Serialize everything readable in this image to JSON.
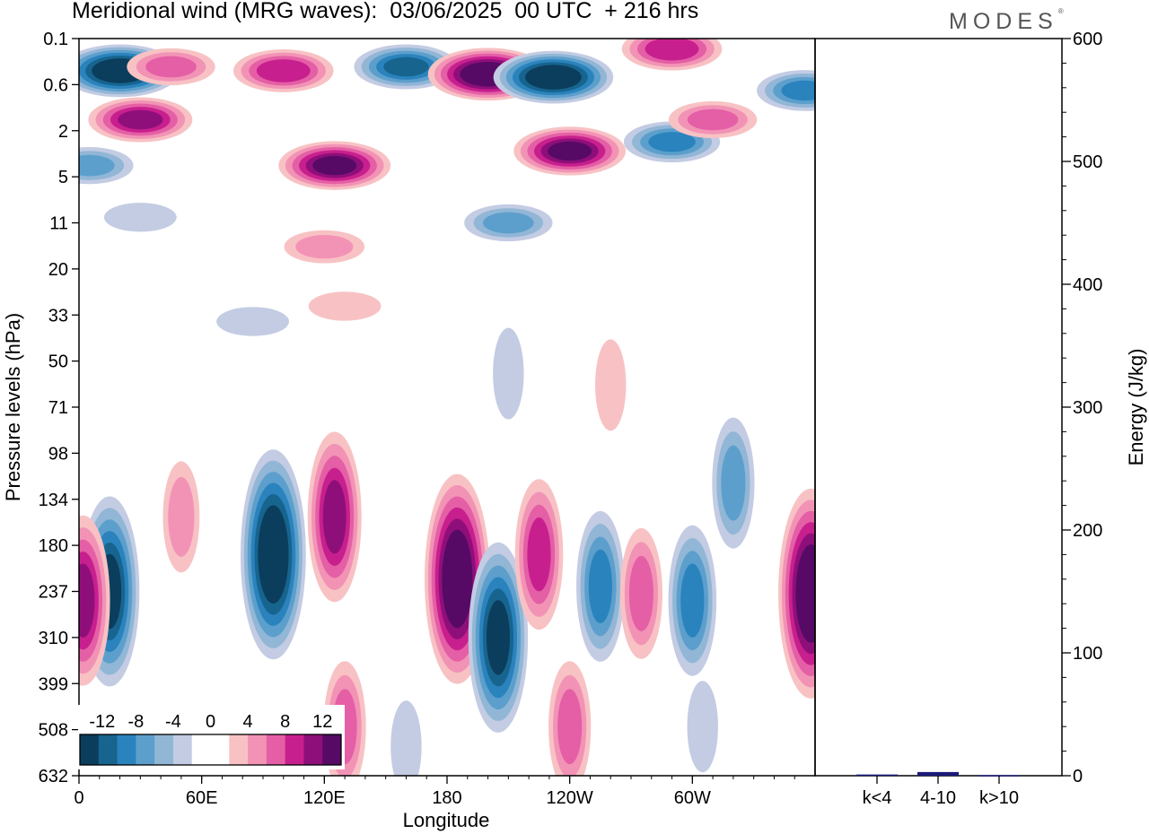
{
  "header": {
    "title": "Meridional wind (MRG waves):  03/06/2025  00 UTC  + 216 hrs",
    "brand": "MODES",
    "brand_mark": "®"
  },
  "chart_data": [
    {
      "type": "heatmap",
      "title": "Meridional wind (MRG waves):  03/06/2025  00 UTC  + 216 hrs",
      "xlabel": "Longitude",
      "ylabel": "Pressure levels (hPa)",
      "x_ticks": [
        "0",
        "60E",
        "120E",
        "180",
        "120W",
        "60W"
      ],
      "y_levels": [
        "0.1",
        "0.6",
        "2",
        "5",
        "11",
        "20",
        "33",
        "50",
        "71",
        "98",
        "134",
        "180",
        "237",
        "310",
        "399",
        "508",
        "632"
      ],
      "colorbar": {
        "labels": [
          "-12",
          "-8",
          "-4",
          "0",
          "4",
          "8",
          "12"
        ],
        "levels": [
          -14,
          -12,
          -10,
          -8,
          -6,
          -4,
          -2,
          0,
          2,
          4,
          6,
          8,
          10,
          12,
          14
        ],
        "colors": [
          "#0b3d5c",
          "#17648f",
          "#2a83bd",
          "#5c9fcc",
          "#91b6d6",
          "#c3cce3",
          "#ffffff",
          "#ffffff",
          "#f8c2c4",
          "#f293b6",
          "#e45fa5",
          "#c81f8e",
          "#8f0f7a",
          "#560a66"
        ]
      },
      "features": [
        {
          "lon": 20,
          "level": 0.35,
          "value": -14
        },
        {
          "lon": 45,
          "level": 0.3,
          "value": 6
        },
        {
          "lon": 100,
          "level": 0.35,
          "value": 9
        },
        {
          "lon": 160,
          "level": 0.3,
          "value": -10
        },
        {
          "lon": 200,
          "level": 0.4,
          "value": 14
        },
        {
          "lon": 232,
          "level": 0.45,
          "value": -14
        },
        {
          "lon": 290,
          "level": 0.15,
          "value": 9
        },
        {
          "lon": 355,
          "level": 0.7,
          "value": -8
        },
        {
          "lon": 30,
          "level": 1.5,
          "value": 10
        },
        {
          "lon": 125,
          "level": 4,
          "value": 12
        },
        {
          "lon": 240,
          "level": 3,
          "value": 12
        },
        {
          "lon": 290,
          "level": 2.5,
          "value": -8
        },
        {
          "lon": 310,
          "level": 1.5,
          "value": 6
        },
        {
          "lon": 5,
          "level": 4,
          "value": -6
        },
        {
          "lon": 30,
          "level": 10,
          "value": -2
        },
        {
          "lon": 210,
          "level": 11,
          "value": -6
        },
        {
          "lon": 120,
          "level": 15,
          "value": 4
        },
        {
          "lon": 85,
          "level": 35,
          "value": -2
        },
        {
          "lon": 130,
          "level": 30,
          "value": 2
        },
        {
          "lon": 210,
          "level": 55,
          "value": -2
        },
        {
          "lon": 260,
          "level": 60,
          "value": 2
        },
        {
          "lon": 15,
          "level": 237,
          "value": -12
        },
        {
          "lon": 50,
          "level": 150,
          "value": 4
        },
        {
          "lon": 95,
          "level": 190,
          "value": -14
        },
        {
          "lon": 125,
          "level": 150,
          "value": 10
        },
        {
          "lon": 185,
          "level": 220,
          "value": 14
        },
        {
          "lon": 205,
          "level": 310,
          "value": -12
        },
        {
          "lon": 225,
          "level": 190,
          "value": 8
        },
        {
          "lon": 255,
          "level": 230,
          "value": -8
        },
        {
          "lon": 275,
          "level": 240,
          "value": 6
        },
        {
          "lon": 300,
          "level": 250,
          "value": -8
        },
        {
          "lon": 320,
          "level": 120,
          "value": -6
        },
        {
          "lon": 2,
          "level": 250,
          "value": 10
        },
        {
          "lon": 358,
          "level": 240,
          "value": 14
        },
        {
          "lon": 130,
          "level": 500,
          "value": 6
        },
        {
          "lon": 240,
          "level": 500,
          "value": 6
        },
        {
          "lon": 160,
          "level": 550,
          "value": -2
        },
        {
          "lon": 305,
          "level": 500,
          "value": -2
        }
      ]
    },
    {
      "type": "bar",
      "categories": [
        "k<4",
        "4-10",
        "k>10"
      ],
      "values": [
        1,
        3,
        0.5
      ],
      "ylabel": "Energy (J/kg)",
      "y_ticks": [
        "0",
        "100",
        "200",
        "300",
        "400",
        "500",
        "600"
      ],
      "ylim": [
        0,
        600
      ],
      "bar_color": "#1a1a7a"
    }
  ]
}
